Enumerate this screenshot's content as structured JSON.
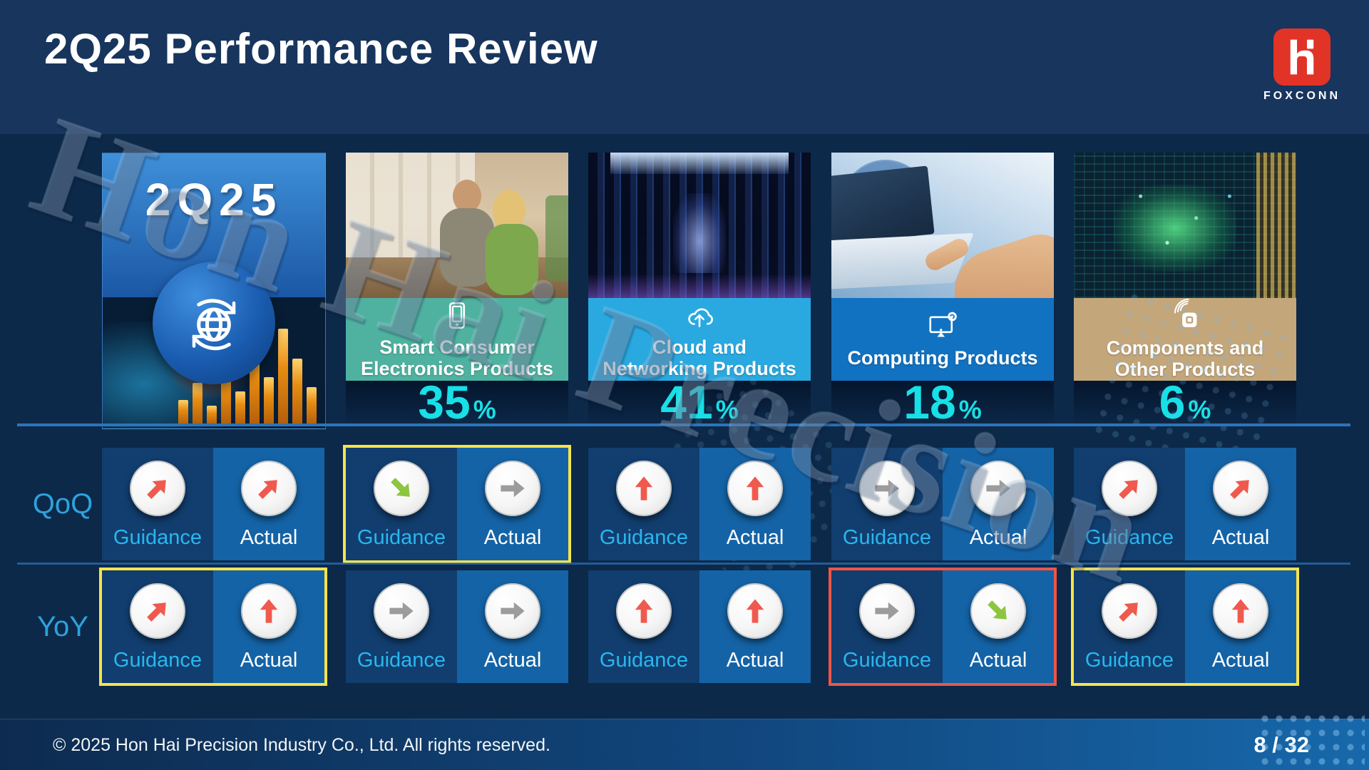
{
  "slide": {
    "title": "2Q25 Performance Review",
    "watermark": "Hon Hai Precision",
    "footer_copyright": "© 2025  Hon Hai Precision Industry Co., Ltd. All rights reserved.",
    "page_indicator": "8 / 32",
    "brand": {
      "name": "FOXCONN",
      "logo_color": "#e23327"
    }
  },
  "overview_card": {
    "label": "2Q25",
    "icon": "globe-refresh-icon"
  },
  "percent_sign": "%",
  "categories": [
    {
      "title_line1": "Smart Consumer",
      "title_line2": "Electronics Products",
      "share": "35",
      "icon": "smartphone-icon",
      "banner_color": "#4fb2a0"
    },
    {
      "title_line1": "Cloud and",
      "title_line2": "Networking Products",
      "share": "41",
      "icon": "cloud-upload-icon",
      "banner_color": "#2aa9e0"
    },
    {
      "title_line1": "Computing Products",
      "title_line2": "",
      "share": "18",
      "icon": "monitor-gear-icon",
      "banner_color": "#1172c2"
    },
    {
      "title_line1": "Components and",
      "title_line2": "Other Products",
      "share": "6",
      "icon": "chip-nfc-icon",
      "banner_color": "#c3a67a"
    }
  ],
  "performance": {
    "guidance_label": "Guidance",
    "actual_label": "Actual",
    "accent_text_color": "#29b7ef",
    "share_text_color": "#17e0e6",
    "arrow_colors": {
      "red": "#f0594e",
      "green": "#8cc63f",
      "gray": "#9c9c9c"
    },
    "highlight_colors": {
      "yellow": "#f7e34b",
      "red": "#ef5548"
    },
    "rows": [
      {
        "label": "QoQ",
        "cells": [
          {
            "column": "overall",
            "highlight": "none",
            "guidance": {
              "direction": "up-right",
              "color": "red"
            },
            "actual": {
              "direction": "up-right",
              "color": "red"
            }
          },
          {
            "column": "smart-consumer",
            "highlight": "yellow",
            "guidance": {
              "direction": "down-right",
              "color": "green"
            },
            "actual": {
              "direction": "flat",
              "color": "gray"
            }
          },
          {
            "column": "cloud-networking",
            "highlight": "none",
            "guidance": {
              "direction": "up",
              "color": "red"
            },
            "actual": {
              "direction": "up",
              "color": "red"
            }
          },
          {
            "column": "computing",
            "highlight": "none",
            "guidance": {
              "direction": "flat",
              "color": "gray"
            },
            "actual": {
              "direction": "flat",
              "color": "gray"
            }
          },
          {
            "column": "components-other",
            "highlight": "none",
            "guidance": {
              "direction": "up-right",
              "color": "red"
            },
            "actual": {
              "direction": "up-right",
              "color": "red"
            }
          }
        ]
      },
      {
        "label": "YoY",
        "cells": [
          {
            "column": "overall",
            "highlight": "yellow",
            "guidance": {
              "direction": "up-right",
              "color": "red"
            },
            "actual": {
              "direction": "up",
              "color": "red"
            }
          },
          {
            "column": "smart-consumer",
            "highlight": "none",
            "guidance": {
              "direction": "flat",
              "color": "gray"
            },
            "actual": {
              "direction": "flat",
              "color": "gray"
            }
          },
          {
            "column": "cloud-networking",
            "highlight": "none",
            "guidance": {
              "direction": "up",
              "color": "red"
            },
            "actual": {
              "direction": "up",
              "color": "red"
            }
          },
          {
            "column": "computing",
            "highlight": "red",
            "guidance": {
              "direction": "flat",
              "color": "gray"
            },
            "actual": {
              "direction": "down-right",
              "color": "green"
            }
          },
          {
            "column": "components-other",
            "highlight": "yellow",
            "guidance": {
              "direction": "up-right",
              "color": "red"
            },
            "actual": {
              "direction": "up",
              "color": "red"
            }
          }
        ]
      }
    ]
  }
}
